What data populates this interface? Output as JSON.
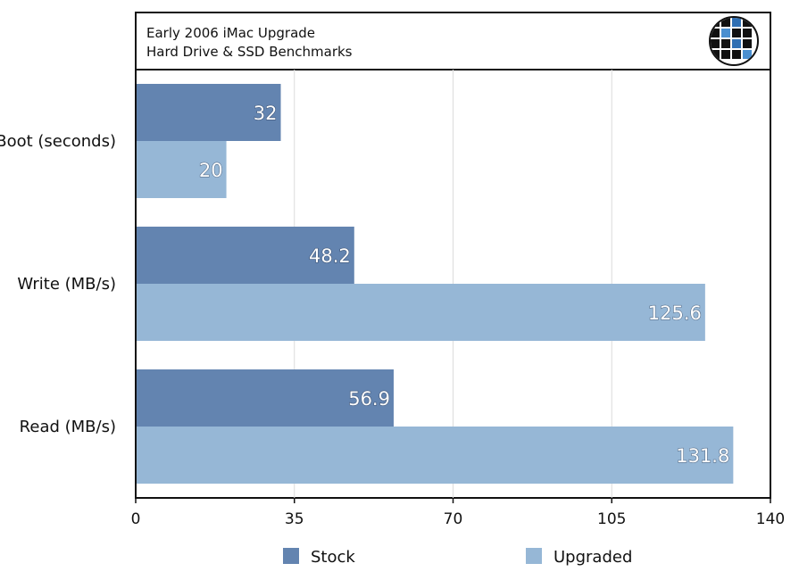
{
  "chart_data": {
    "type": "bar",
    "orientation": "horizontal",
    "title": "Early 2006 iMac Upgrade",
    "subtitle": "Hard Drive & SSD Benchmarks",
    "categories": [
      "Boot (seconds)",
      "Write (MB/s)",
      "Read (MB/s)"
    ],
    "series": [
      {
        "name": "Stock",
        "values": [
          32,
          48.2,
          56.9
        ],
        "value_labels": [
          "32",
          "48.2",
          "56.9"
        ],
        "color": "#6384b0"
      },
      {
        "name": "Upgraded",
        "values": [
          20,
          125.6,
          131.8
        ],
        "value_labels": [
          "20",
          "125.6",
          "131.8"
        ],
        "color": "#96b7d6"
      }
    ],
    "xlim": [
      0,
      140
    ],
    "xticks": [
      0,
      35,
      70,
      105,
      140
    ],
    "xtick_labels": [
      "0",
      "35",
      "70",
      "105",
      "140"
    ],
    "grid": true,
    "legend_position": "bottom"
  },
  "logo": {
    "name": "globe-logo"
  }
}
